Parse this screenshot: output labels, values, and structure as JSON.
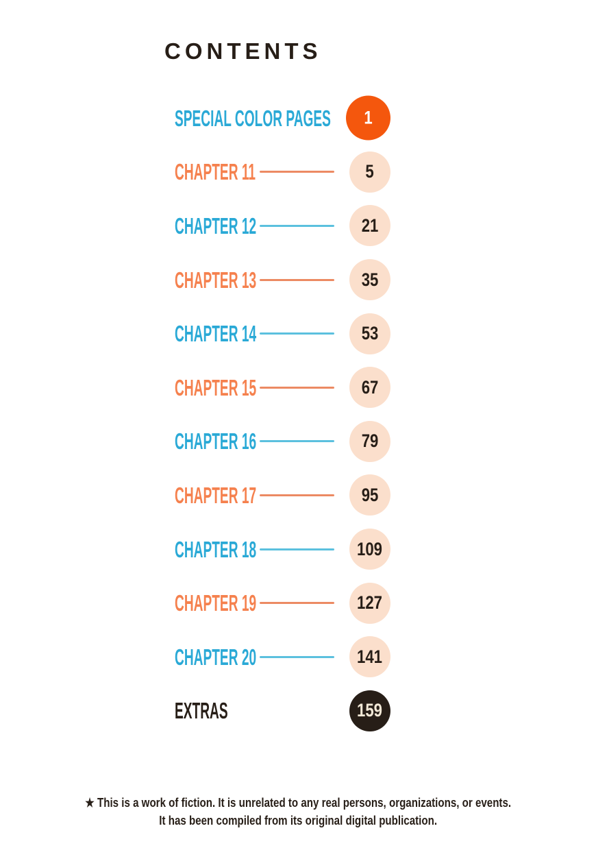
{
  "page": {
    "title": "CONTENTS",
    "footer_line1": "★ This is a work of fiction. It is unrelated to any real persons, organizations, or events.",
    "footer_line2": "It has been compiled from its original digital publication."
  },
  "colors": {
    "ink": "#271e17",
    "orange_accent": "#f4570d",
    "orange_label": "#f5814e",
    "orange_line": "#ec8a63",
    "blue_label": "#2aa9d6",
    "blue_line": "#5bc0de",
    "peach_badge": "#fbdfcc",
    "cream_text": "#f3e9d7",
    "page_background": "#ffffff"
  },
  "toc": {
    "rows": [
      {
        "label": "SPECIAL COLOR PAGES",
        "page": "1",
        "label_color": "blue",
        "line_color": "none",
        "circle_color": "orange"
      },
      {
        "label": "CHAPTER 11",
        "page": "5",
        "label_color": "orange",
        "line_color": "orange",
        "circle_color": "peach"
      },
      {
        "label": "CHAPTER 12",
        "page": "21",
        "label_color": "blue",
        "line_color": "blue",
        "circle_color": "peach"
      },
      {
        "label": "CHAPTER 13",
        "page": "35",
        "label_color": "orange",
        "line_color": "orange",
        "circle_color": "peach"
      },
      {
        "label": "CHAPTER 14",
        "page": "53",
        "label_color": "blue",
        "line_color": "blue",
        "circle_color": "peach"
      },
      {
        "label": "CHAPTER 15",
        "page": "67",
        "label_color": "orange",
        "line_color": "orange",
        "circle_color": "peach"
      },
      {
        "label": "CHAPTER 16",
        "page": "79",
        "label_color": "blue",
        "line_color": "blue",
        "circle_color": "peach"
      },
      {
        "label": "CHAPTER 17",
        "page": "95",
        "label_color": "orange",
        "line_color": "orange",
        "circle_color": "peach"
      },
      {
        "label": "CHAPTER 18",
        "page": "109",
        "label_color": "blue",
        "line_color": "blue",
        "circle_color": "peach"
      },
      {
        "label": "CHAPTER 19",
        "page": "127",
        "label_color": "orange",
        "line_color": "orange",
        "circle_color": "peach"
      },
      {
        "label": "CHAPTER 20",
        "page": "141",
        "label_color": "blue",
        "line_color": "blue",
        "circle_color": "peach"
      },
      {
        "label": "EXTRAS",
        "page": "159",
        "label_color": "dark",
        "line_color": "none",
        "circle_color": "dark"
      }
    ]
  }
}
